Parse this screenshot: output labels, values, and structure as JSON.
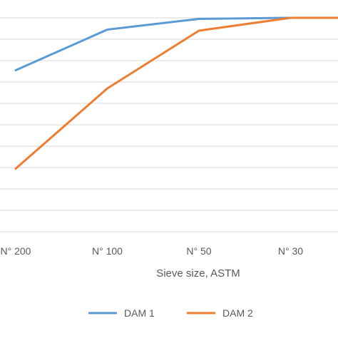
{
  "chart_data": {
    "type": "line",
    "categories": [
      "N° 200",
      "N° 100",
      "N° 50",
      "N° 30",
      ""
    ],
    "xlabel": "Sieve size, ASTM",
    "ylabel": "",
    "ylim": [
      0,
      100
    ],
    "grid": true,
    "legend_position": "bottom",
    "series": [
      {
        "name": "DAM 1",
        "color": "#5b9bd5",
        "values": [
          75.5,
          94.5,
          99.5,
          100,
          100
        ]
      },
      {
        "name": "DAM 2",
        "color": "#ed7d31",
        "values": [
          29.5,
          67,
          94,
          100,
          100
        ]
      }
    ]
  }
}
